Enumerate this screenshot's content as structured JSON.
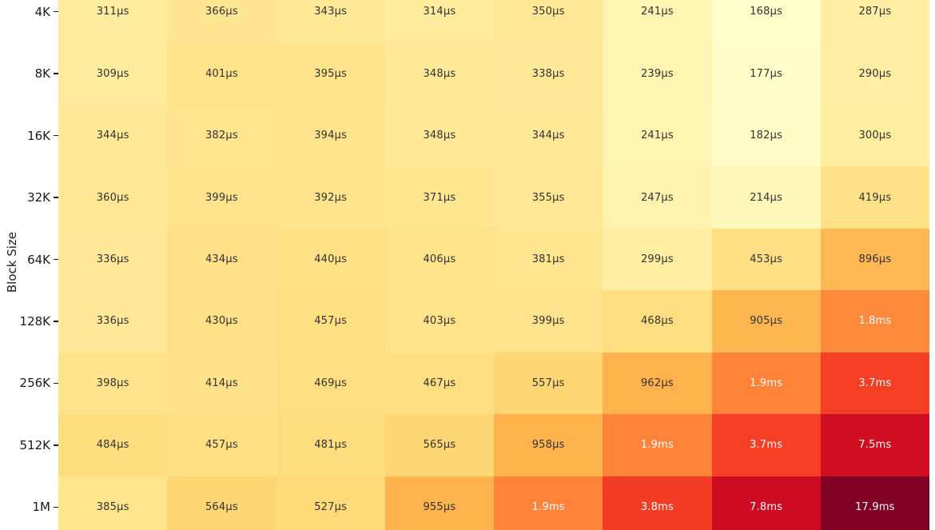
{
  "chart_data": {
    "type": "heatmap",
    "ylabel": "Block Size",
    "rows": [
      "4K",
      "8K",
      "16K",
      "32K",
      "64K",
      "128K",
      "256K",
      "512K",
      "1M"
    ],
    "values_us": [
      [
        311,
        366,
        343,
        314,
        350,
        241,
        168,
        287
      ],
      [
        309,
        401,
        395,
        348,
        338,
        239,
        177,
        290
      ],
      [
        344,
        382,
        394,
        348,
        344,
        241,
        182,
        300
      ],
      [
        360,
        399,
        392,
        371,
        355,
        247,
        214,
        419
      ],
      [
        336,
        434,
        440,
        406,
        381,
        299,
        453,
        896
      ],
      [
        336,
        430,
        457,
        403,
        399,
        468,
        905,
        1800
      ],
      [
        398,
        414,
        469,
        467,
        557,
        962,
        1900,
        3700
      ],
      [
        484,
        457,
        481,
        565,
        958,
        1900,
        3700,
        7500
      ],
      [
        385,
        564,
        527,
        955,
        1900,
        3800,
        7800,
        17900
      ]
    ],
    "labels": [
      [
        "311µs",
        "366µs",
        "343µs",
        "314µs",
        "350µs",
        "241µs",
        "168µs",
        "287µs"
      ],
      [
        "309µs",
        "401µs",
        "395µs",
        "348µs",
        "338µs",
        "239µs",
        "177µs",
        "290µs"
      ],
      [
        "344µs",
        "382µs",
        "394µs",
        "348µs",
        "344µs",
        "241µs",
        "182µs",
        "300µs"
      ],
      [
        "360µs",
        "399µs",
        "392µs",
        "371µs",
        "355µs",
        "247µs",
        "214µs",
        "419µs"
      ],
      [
        "336µs",
        "434µs",
        "440µs",
        "406µs",
        "381µs",
        "299µs",
        "453µs",
        "896µs"
      ],
      [
        "336µs",
        "430µs",
        "457µs",
        "403µs",
        "399µs",
        "468µs",
        "905µs",
        "1.8ms"
      ],
      [
        "398µs",
        "414µs",
        "469µs",
        "467µs",
        "557µs",
        "962µs",
        "1.9ms",
        "3.7ms"
      ],
      [
        "484µs",
        "457µs",
        "481µs",
        "565µs",
        "958µs",
        "1.9ms",
        "3.7ms",
        "7.5ms"
      ],
      [
        "385µs",
        "564µs",
        "527µs",
        "955µs",
        "1.9ms",
        "3.8ms",
        "7.8ms",
        "17.9ms"
      ]
    ],
    "scale": "log",
    "vmin_us": 168,
    "vmax_us": 17900,
    "grid": false,
    "legend": "none",
    "colormap": {
      "name": "YlOrRd",
      "stops": [
        [
          255,
          255,
          204
        ],
        [
          255,
          237,
          160
        ],
        [
          254,
          217,
          118
        ],
        [
          254,
          178,
          76
        ],
        [
          253,
          141,
          60
        ],
        [
          252,
          78,
          42
        ],
        [
          227,
          26,
          28
        ],
        [
          189,
          0,
          38
        ],
        [
          128,
          0,
          38
        ]
      ]
    },
    "annotation_colors": {
      "dark": "#333333",
      "light": "#ffffff"
    },
    "tick_color": "#1a1a1a"
  }
}
